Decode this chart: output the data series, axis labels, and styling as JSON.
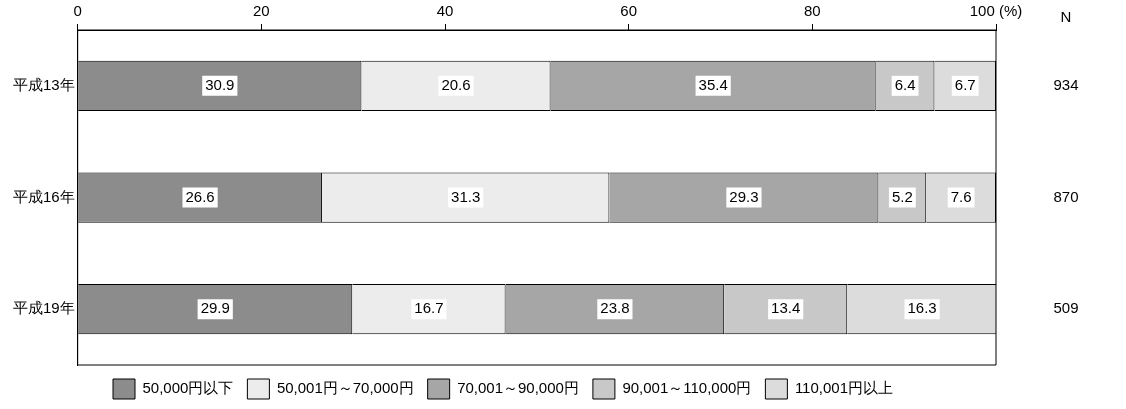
{
  "chart_data": {
    "type": "bar",
    "orientation": "horizontal",
    "stacked": true,
    "categories": [
      "平成13年",
      "平成16年",
      "平成19年"
    ],
    "series": [
      {
        "name": "50,000円以下",
        "color": "#8c8c8c",
        "values": [
          30.9,
          26.6,
          29.9
        ]
      },
      {
        "name": "50,001円～70,000円",
        "color": "#ececec",
        "values": [
          20.6,
          31.3,
          16.7
        ]
      },
      {
        "name": "70,001～90,000円",
        "color": "#a6a6a6",
        "values": [
          35.4,
          29.3,
          23.8
        ]
      },
      {
        "name": "90,001～110,000円",
        "color": "#c8c8c8",
        "values": [
          6.4,
          5.2,
          13.4
        ]
      },
      {
        "name": "110,001円以上",
        "color": "#dcdcdc",
        "values": [
          6.7,
          7.6,
          16.3
        ]
      }
    ],
    "xlim": [
      0,
      100
    ],
    "xticks": [
      0,
      20,
      40,
      60,
      80,
      {
        "value": 100,
        "label": "100 (%)"
      }
    ],
    "data_labels": true,
    "grid": false,
    "legend": "bottom",
    "annotations": [
      "N",
      "934",
      "870",
      "509"
    ]
  }
}
